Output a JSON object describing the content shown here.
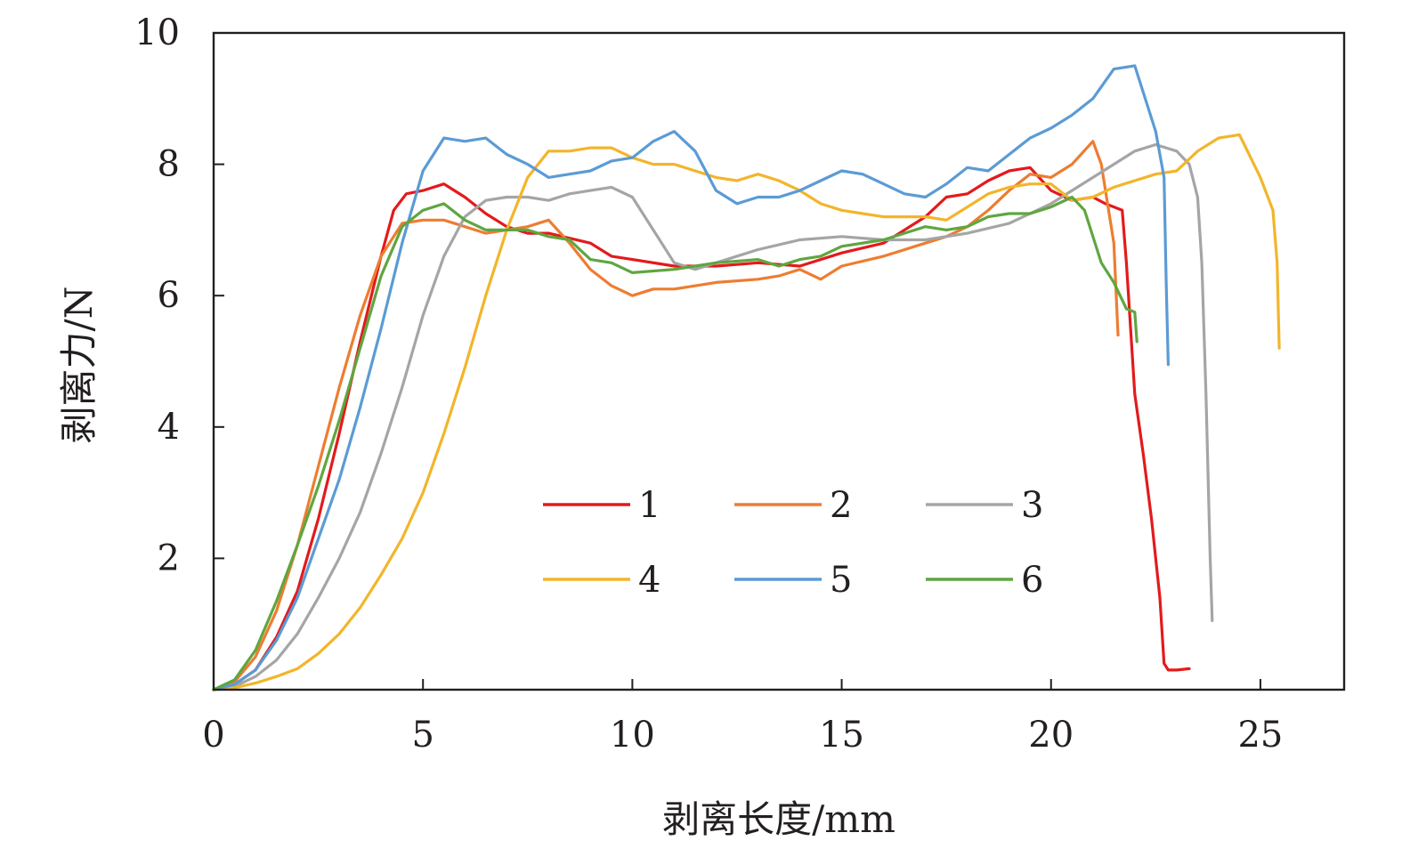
{
  "chart_data": {
    "type": "line",
    "title": "",
    "xlabel": "剥离长度/mm",
    "ylabel": "剥离力/N",
    "xlim": [
      0,
      27
    ],
    "ylim": [
      0,
      10
    ],
    "xticks": [
      0,
      5,
      10,
      15,
      20,
      25
    ],
    "yticks": [
      2,
      4,
      6,
      8,
      10
    ],
    "grid": false,
    "legend_position": "center-bottom",
    "series": [
      {
        "name": "1",
        "color": "#e31a1c",
        "points": [
          [
            0,
            0
          ],
          [
            0.5,
            0.08
          ],
          [
            1,
            0.3
          ],
          [
            1.5,
            0.8
          ],
          [
            2,
            1.5
          ],
          [
            2.5,
            2.6
          ],
          [
            3,
            3.9
          ],
          [
            3.5,
            5.3
          ],
          [
            4,
            6.6
          ],
          [
            4.3,
            7.3
          ],
          [
            4.6,
            7.55
          ],
          [
            5,
            7.6
          ],
          [
            5.5,
            7.7
          ],
          [
            6,
            7.5
          ],
          [
            6.5,
            7.25
          ],
          [
            7,
            7.05
          ],
          [
            7.5,
            6.95
          ],
          [
            8,
            6.95
          ],
          [
            9,
            6.8
          ],
          [
            9.5,
            6.6
          ],
          [
            10,
            6.55
          ],
          [
            11,
            6.45
          ],
          [
            12,
            6.45
          ],
          [
            13,
            6.5
          ],
          [
            14,
            6.45
          ],
          [
            15,
            6.65
          ],
          [
            16,
            6.8
          ],
          [
            17,
            7.2
          ],
          [
            17.5,
            7.5
          ],
          [
            18,
            7.55
          ],
          [
            18.5,
            7.75
          ],
          [
            19,
            7.9
          ],
          [
            19.5,
            7.95
          ],
          [
            20,
            7.6
          ],
          [
            20.5,
            7.45
          ],
          [
            21,
            7.5
          ],
          [
            21.3,
            7.4
          ],
          [
            21.7,
            7.3
          ],
          [
            21.8,
            6.5
          ],
          [
            22,
            4.5
          ],
          [
            22.2,
            3.6
          ],
          [
            22.4,
            2.6
          ],
          [
            22.6,
            1.4
          ],
          [
            22.7,
            0.4
          ],
          [
            22.8,
            0.3
          ],
          [
            23,
            0.3
          ],
          [
            23.3,
            0.32
          ]
        ]
      },
      {
        "name": "2",
        "color": "#ed7d31",
        "points": [
          [
            0,
            0
          ],
          [
            0.5,
            0.12
          ],
          [
            1,
            0.5
          ],
          [
            1.5,
            1.2
          ],
          [
            2,
            2.2
          ],
          [
            2.5,
            3.4
          ],
          [
            3,
            4.6
          ],
          [
            3.5,
            5.7
          ],
          [
            4,
            6.6
          ],
          [
            4.5,
            7.1
          ],
          [
            5,
            7.15
          ],
          [
            5.5,
            7.15
          ],
          [
            6,
            7.05
          ],
          [
            6.5,
            6.95
          ],
          [
            7,
            7.0
          ],
          [
            7.5,
            7.05
          ],
          [
            8,
            7.15
          ],
          [
            8.5,
            6.8
          ],
          [
            9,
            6.4
          ],
          [
            9.5,
            6.15
          ],
          [
            10,
            6.0
          ],
          [
            10.5,
            6.1
          ],
          [
            11,
            6.1
          ],
          [
            12,
            6.2
          ],
          [
            13,
            6.25
          ],
          [
            13.5,
            6.3
          ],
          [
            14,
            6.4
          ],
          [
            14.5,
            6.25
          ],
          [
            15,
            6.45
          ],
          [
            16,
            6.6
          ],
          [
            17,
            6.8
          ],
          [
            17.5,
            6.9
          ],
          [
            18,
            7.05
          ],
          [
            18.5,
            7.3
          ],
          [
            19,
            7.6
          ],
          [
            19.5,
            7.85
          ],
          [
            20,
            7.8
          ],
          [
            20.5,
            8.0
          ],
          [
            21,
            8.35
          ],
          [
            21.2,
            8.0
          ],
          [
            21.5,
            6.8
          ],
          [
            21.6,
            5.4
          ]
        ]
      },
      {
        "name": "3",
        "color": "#a5a5a5",
        "points": [
          [
            0,
            0
          ],
          [
            0.5,
            0.05
          ],
          [
            1,
            0.2
          ],
          [
            1.5,
            0.45
          ],
          [
            2,
            0.85
          ],
          [
            2.5,
            1.4
          ],
          [
            3,
            2.0
          ],
          [
            3.5,
            2.7
          ],
          [
            4,
            3.6
          ],
          [
            4.5,
            4.6
          ],
          [
            5,
            5.7
          ],
          [
            5.5,
            6.6
          ],
          [
            6,
            7.2
          ],
          [
            6.5,
            7.45
          ],
          [
            7,
            7.5
          ],
          [
            7.5,
            7.5
          ],
          [
            8,
            7.45
          ],
          [
            8.5,
            7.55
          ],
          [
            9,
            7.6
          ],
          [
            9.5,
            7.65
          ],
          [
            10,
            7.5
          ],
          [
            10.5,
            7.0
          ],
          [
            11,
            6.5
          ],
          [
            11.5,
            6.4
          ],
          [
            12,
            6.5
          ],
          [
            13,
            6.7
          ],
          [
            14,
            6.85
          ],
          [
            15,
            6.9
          ],
          [
            16,
            6.85
          ],
          [
            17,
            6.85
          ],
          [
            18,
            6.95
          ],
          [
            19,
            7.1
          ],
          [
            20,
            7.4
          ],
          [
            20.5,
            7.6
          ],
          [
            21,
            7.8
          ],
          [
            21.5,
            8.0
          ],
          [
            22,
            8.2
          ],
          [
            22.5,
            8.3
          ],
          [
            23,
            8.2
          ],
          [
            23.3,
            8.0
          ],
          [
            23.5,
            7.5
          ],
          [
            23.6,
            6.5
          ],
          [
            23.7,
            4.5
          ],
          [
            23.8,
            2.0
          ],
          [
            23.85,
            1.05
          ]
        ]
      },
      {
        "name": "4",
        "color": "#f2b52b",
        "points": [
          [
            0,
            0
          ],
          [
            0.5,
            0.03
          ],
          [
            1,
            0.1
          ],
          [
            1.5,
            0.2
          ],
          [
            2,
            0.32
          ],
          [
            2.5,
            0.55
          ],
          [
            3,
            0.85
          ],
          [
            3.5,
            1.25
          ],
          [
            4,
            1.75
          ],
          [
            4.5,
            2.3
          ],
          [
            5,
            3.0
          ],
          [
            5.5,
            3.9
          ],
          [
            6,
            4.9
          ],
          [
            6.5,
            6.0
          ],
          [
            7,
            7.0
          ],
          [
            7.5,
            7.8
          ],
          [
            8,
            8.2
          ],
          [
            8.5,
            8.2
          ],
          [
            9,
            8.25
          ],
          [
            9.5,
            8.25
          ],
          [
            10,
            8.1
          ],
          [
            10.5,
            8.0
          ],
          [
            11,
            8.0
          ],
          [
            11.5,
            7.9
          ],
          [
            12,
            7.8
          ],
          [
            12.5,
            7.75
          ],
          [
            13,
            7.85
          ],
          [
            13.5,
            7.75
          ],
          [
            14,
            7.6
          ],
          [
            14.5,
            7.4
          ],
          [
            15,
            7.3
          ],
          [
            15.5,
            7.25
          ],
          [
            16,
            7.2
          ],
          [
            16.5,
            7.2
          ],
          [
            17,
            7.2
          ],
          [
            17.5,
            7.15
          ],
          [
            18,
            7.35
          ],
          [
            18.5,
            7.55
          ],
          [
            19,
            7.65
          ],
          [
            19.5,
            7.7
          ],
          [
            20,
            7.7
          ],
          [
            20.5,
            7.45
          ],
          [
            21,
            7.5
          ],
          [
            21.5,
            7.65
          ],
          [
            22,
            7.75
          ],
          [
            22.5,
            7.85
          ],
          [
            23,
            7.9
          ],
          [
            23.5,
            8.2
          ],
          [
            24,
            8.4
          ],
          [
            24.5,
            8.45
          ],
          [
            25,
            7.8
          ],
          [
            25.3,
            7.3
          ],
          [
            25.4,
            6.5
          ],
          [
            25.45,
            5.2
          ]
        ]
      },
      {
        "name": "5",
        "color": "#5b9bd5",
        "points": [
          [
            0,
            0
          ],
          [
            0.5,
            0.08
          ],
          [
            1,
            0.3
          ],
          [
            1.5,
            0.75
          ],
          [
            2,
            1.4
          ],
          [
            2.5,
            2.3
          ],
          [
            3,
            3.2
          ],
          [
            3.5,
            4.3
          ],
          [
            4,
            5.5
          ],
          [
            4.5,
            6.8
          ],
          [
            5,
            7.9
          ],
          [
            5.5,
            8.4
          ],
          [
            6,
            8.35
          ],
          [
            6.5,
            8.4
          ],
          [
            7,
            8.15
          ],
          [
            7.5,
            8.0
          ],
          [
            8,
            7.8
          ],
          [
            8.5,
            7.85
          ],
          [
            9,
            7.9
          ],
          [
            9.5,
            8.05
          ],
          [
            10,
            8.1
          ],
          [
            10.5,
            8.35
          ],
          [
            11,
            8.5
          ],
          [
            11.5,
            8.2
          ],
          [
            12,
            7.6
          ],
          [
            12.5,
            7.4
          ],
          [
            13,
            7.5
          ],
          [
            13.5,
            7.5
          ],
          [
            14,
            7.6
          ],
          [
            14.5,
            7.75
          ],
          [
            15,
            7.9
          ],
          [
            15.5,
            7.85
          ],
          [
            16,
            7.7
          ],
          [
            16.5,
            7.55
          ],
          [
            17,
            7.5
          ],
          [
            17.5,
            7.7
          ],
          [
            18,
            7.95
          ],
          [
            18.5,
            7.9
          ],
          [
            19,
            8.15
          ],
          [
            19.5,
            8.4
          ],
          [
            20,
            8.55
          ],
          [
            20.5,
            8.75
          ],
          [
            21,
            9.0
          ],
          [
            21.5,
            9.45
          ],
          [
            22,
            9.5
          ],
          [
            22.3,
            8.9
          ],
          [
            22.5,
            8.5
          ],
          [
            22.7,
            7.8
          ],
          [
            22.75,
            6.2
          ],
          [
            22.8,
            4.95
          ]
        ]
      },
      {
        "name": "6",
        "color": "#5fa640",
        "points": [
          [
            0,
            0
          ],
          [
            0.5,
            0.15
          ],
          [
            1,
            0.6
          ],
          [
            1.5,
            1.35
          ],
          [
            2,
            2.2
          ],
          [
            2.5,
            3.1
          ],
          [
            3,
            4.1
          ],
          [
            3.5,
            5.2
          ],
          [
            4,
            6.3
          ],
          [
            4.5,
            7.05
          ],
          [
            5,
            7.3
          ],
          [
            5.5,
            7.4
          ],
          [
            6,
            7.15
          ],
          [
            6.5,
            7.0
          ],
          [
            7,
            7.0
          ],
          [
            7.5,
            7.0
          ],
          [
            8,
            6.9
          ],
          [
            8.5,
            6.85
          ],
          [
            9,
            6.55
          ],
          [
            9.5,
            6.5
          ],
          [
            10,
            6.35
          ],
          [
            11,
            6.4
          ],
          [
            11.5,
            6.45
          ],
          [
            12,
            6.5
          ],
          [
            13,
            6.55
          ],
          [
            13.5,
            6.45
          ],
          [
            14,
            6.55
          ],
          [
            14.5,
            6.6
          ],
          [
            15,
            6.75
          ],
          [
            16,
            6.85
          ],
          [
            17,
            7.05
          ],
          [
            17.5,
            7.0
          ],
          [
            18,
            7.05
          ],
          [
            18.5,
            7.2
          ],
          [
            19,
            7.25
          ],
          [
            19.5,
            7.25
          ],
          [
            20,
            7.35
          ],
          [
            20.5,
            7.5
          ],
          [
            20.8,
            7.3
          ],
          [
            21,
            6.9
          ],
          [
            21.2,
            6.5
          ],
          [
            21.5,
            6.2
          ],
          [
            21.8,
            5.8
          ],
          [
            22,
            5.75
          ],
          [
            22.05,
            5.3
          ]
        ]
      }
    ]
  }
}
